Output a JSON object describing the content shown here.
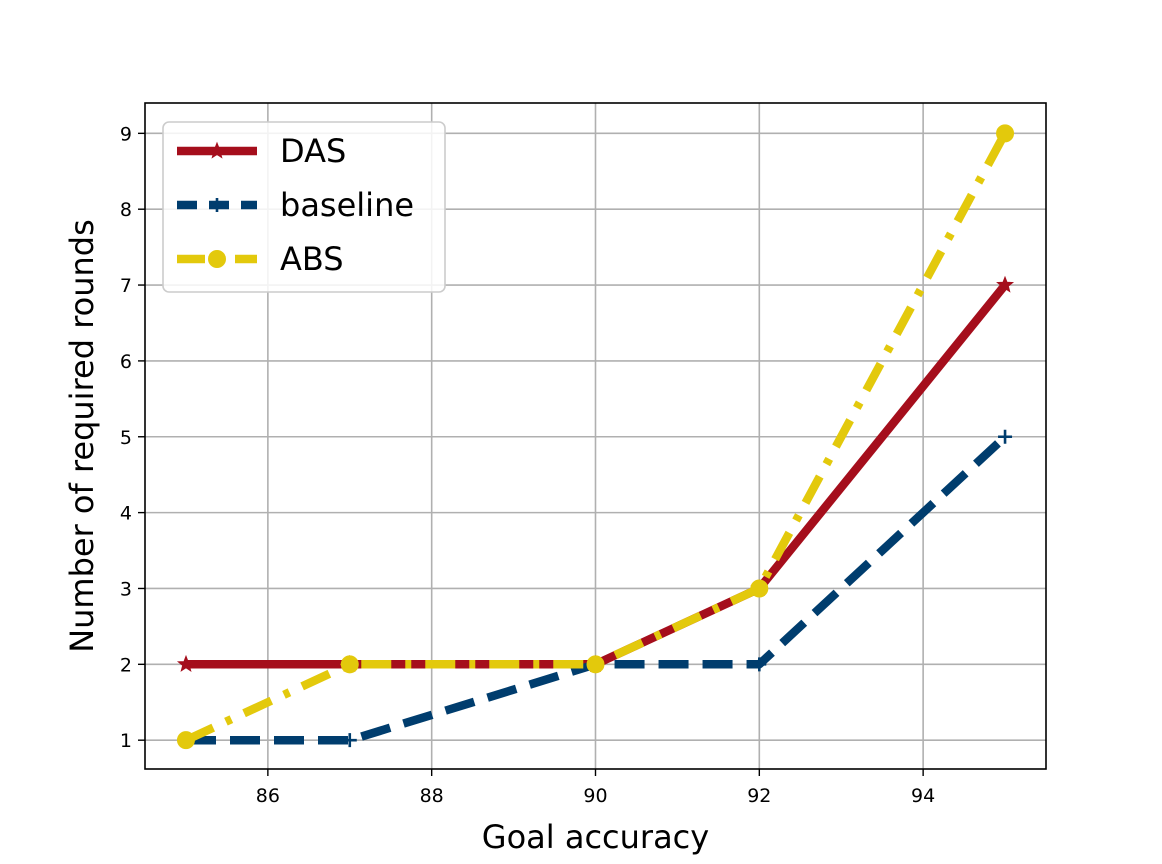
{
  "chart_data": {
    "type": "line",
    "title": "",
    "xlabel": "Goal accuracy",
    "ylabel": "Number of required rounds",
    "xlim": [
      84.5,
      95.5
    ],
    "ylim": [
      0.62,
      9.4
    ],
    "xticks": [
      86,
      88,
      90,
      92,
      94
    ],
    "yticks": [
      1,
      2,
      3,
      4,
      5,
      6,
      7,
      8,
      9
    ],
    "grid": true,
    "legend_position": "top-left",
    "series": [
      {
        "name": "DAS",
        "x": [
          85,
          87,
          90,
          92,
          95
        ],
        "y": [
          2,
          2,
          2,
          3,
          7
        ],
        "color": "#a50e1c",
        "line_style": "solid",
        "marker": "star"
      },
      {
        "name": "baseline",
        "x": [
          85,
          87,
          90,
          92,
          95
        ],
        "y": [
          1,
          1,
          2,
          2,
          5
        ],
        "color": "#003d6e",
        "line_style": "dashed",
        "marker": "plus"
      },
      {
        "name": "ABS",
        "x": [
          85,
          87,
          90,
          92,
          95
        ],
        "y": [
          1,
          2,
          2,
          3,
          9
        ],
        "color": "#e3c90c",
        "line_style": "dashdot",
        "marker": "circle"
      }
    ]
  }
}
